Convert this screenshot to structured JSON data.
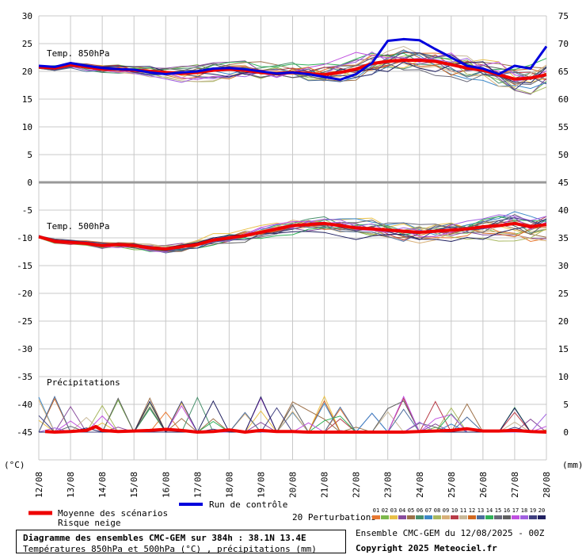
{
  "chart_data": {
    "type": "line",
    "title": "Diagramme des ensembles CMC-GEM sur 384h : 38.1N 13.4E",
    "subtitle": "Températures 850hPa et 500hPa (°C) , précipitations (mm)",
    "run_info": "Ensemble CMC-GEM du 12/08/2025 - 00Z",
    "copyright": "Copyright 2025 Meteociel.fr",
    "left_axis_unit": "(°C)",
    "right_axis_unit": "(mm)",
    "left_axis": {
      "range": [
        -50,
        30
      ],
      "ticks": [
        30,
        25,
        20,
        15,
        10,
        5,
        0,
        -5,
        -10,
        -15,
        -20,
        -25,
        -30,
        -35,
        -40,
        -45
      ]
    },
    "right_axis_ticks": [
      {
        "label": "75",
        "at": 30
      },
      {
        "label": "70",
        "at": 25
      },
      {
        "label": "65",
        "at": 20
      },
      {
        "label": "60",
        "at": 15
      },
      {
        "label": "55",
        "at": 10
      },
      {
        "label": "50",
        "at": 5
      },
      {
        "label": "45",
        "at": 0
      },
      {
        "label": "40",
        "at": -5
      },
      {
        "label": "35",
        "at": -10
      },
      {
        "label": "30",
        "at": -15
      },
      {
        "label": "25",
        "at": -20
      },
      {
        "label": "20",
        "at": -25
      },
      {
        "label": "15",
        "at": -30
      },
      {
        "label": "10",
        "at": -35
      },
      {
        "label": "5",
        "at": -40
      },
      {
        "label": "0",
        "at": -45
      }
    ],
    "x_axis": {
      "range": [
        0,
        16
      ],
      "ticks": [
        "12/08",
        "13/08",
        "14/08",
        "15/08",
        "16/08",
        "17/08",
        "18/08",
        "19/08",
        "20/08",
        "21/08",
        "22/08",
        "23/08",
        "24/08",
        "25/08",
        "26/08",
        "27/08",
        "28/08"
      ]
    },
    "grid": true,
    "panels": {
      "t850": "Temp. 850hPa",
      "t500": "Temp. 500hPa",
      "precip": "Précipitations"
    },
    "legend": {
      "mean": "Moyenne des scénarios",
      "snow": "Risque neige",
      "control": "Run de contrôle",
      "perturbations": "20 Perturbations"
    },
    "colors": {
      "mean": "#ee0000",
      "control": "#0000dd",
      "perturbations": [
        "#e87830",
        "#7cb84c",
        "#e8c048",
        "#884c9c",
        "#9c7048",
        "#48906c",
        "#3c88c8",
        "#a8b860",
        "#d8b078",
        "#b83c48",
        "#c8b898",
        "#d06820",
        "#4c6c9c",
        "#30b058",
        "#686878",
        "#606060",
        "#c050e0",
        "#a060e0",
        "#404080",
        "#202060"
      ]
    },
    "pert_labels": [
      "01",
      "02",
      "03",
      "04",
      "05",
      "06",
      "07",
      "08",
      "09",
      "10",
      "11",
      "12",
      "13",
      "14",
      "15",
      "16",
      "17",
      "18",
      "19",
      "20"
    ],
    "series": [
      {
        "name": "Moyenne des scénarios",
        "level": "850hPa",
        "x": [
          0,
          0.5,
          1,
          1.5,
          2,
          2.5,
          3,
          3.5,
          4,
          4.5,
          5,
          5.5,
          6,
          6.5,
          7,
          7.5,
          8,
          8.5,
          9,
          9.5,
          10,
          10.5,
          11,
          11.5,
          12,
          12.5,
          13,
          13.5,
          14,
          14.5,
          15,
          15.5,
          16
        ],
        "values": [
          20.8,
          20.6,
          21.2,
          20.8,
          20.4,
          20.4,
          20.2,
          20.0,
          19.8,
          19.6,
          19.8,
          20.2,
          20.4,
          20.2,
          19.8,
          19.6,
          19.8,
          19.6,
          19.4,
          19.8,
          20.4,
          21.4,
          21.8,
          22.0,
          22.0,
          21.8,
          21.2,
          20.6,
          20.2,
          19.4,
          18.6,
          18.8,
          19.4
        ]
      },
      {
        "name": "Run de contrôle",
        "level": "850hPa",
        "x": [
          0,
          0.5,
          1,
          1.5,
          2,
          2.5,
          3,
          3.5,
          4,
          4.5,
          5,
          5.5,
          6,
          6.5,
          7,
          7.5,
          8,
          8.5,
          9,
          9.5,
          10,
          10.5,
          11,
          11.5,
          12,
          12.5,
          13,
          13.5,
          14,
          14.5,
          15,
          15.5,
          16
        ],
        "values": [
          21.0,
          20.8,
          21.5,
          21.0,
          20.6,
          20.4,
          20.3,
          19.8,
          19.5,
          19.8,
          20.0,
          20.5,
          20.6,
          20.4,
          20.0,
          19.6,
          19.8,
          19.5,
          19.0,
          18.5,
          19.5,
          21.5,
          25.5,
          25.8,
          25.6,
          24.0,
          22.5,
          21.0,
          20.5,
          19.5,
          21.0,
          20.5,
          24.5
        ]
      },
      {
        "name": "Moyenne des scénarios",
        "level": "500hPa",
        "x": [
          0,
          0.5,
          1,
          1.5,
          2,
          2.5,
          3,
          3.5,
          4,
          4.5,
          5,
          5.5,
          6,
          6.5,
          7,
          7.5,
          8,
          8.5,
          9,
          9.5,
          10,
          10.5,
          11,
          11.5,
          12,
          12.5,
          13,
          13.5,
          14,
          14.5,
          15,
          15.5,
          16
        ],
        "values": [
          -9.8,
          -10.6,
          -10.8,
          -11.0,
          -11.4,
          -11.2,
          -11.4,
          -11.8,
          -12.0,
          -11.6,
          -11.2,
          -10.4,
          -10.0,
          -9.6,
          -9.0,
          -8.4,
          -7.8,
          -7.6,
          -7.4,
          -7.8,
          -8.2,
          -8.4,
          -8.6,
          -8.8,
          -9.0,
          -8.8,
          -8.6,
          -8.4,
          -8.0,
          -7.8,
          -7.4,
          -8.0,
          -7.6
        ]
      },
      {
        "name": "Moyenne des scénarios",
        "level": "precip_mm",
        "x": [
          0.2,
          0.5,
          1,
          1.5,
          1.8,
          2,
          2.5,
          3,
          3.5,
          4,
          4.5,
          5,
          5.5,
          6,
          6.5,
          7,
          7.5,
          8,
          8.5,
          9,
          9.5,
          10,
          10.5,
          11,
          11.5,
          12,
          12.5,
          13,
          13.5,
          14,
          14.5,
          15,
          15.5,
          16
        ],
        "values": [
          0.1,
          0.0,
          0.1,
          0.3,
          1.0,
          0.3,
          0.1,
          0.2,
          0.3,
          0.5,
          0.3,
          0.0,
          0.1,
          0.4,
          0.0,
          0.3,
          0.1,
          0.1,
          0.0,
          0.0,
          0.0,
          0.0,
          0.0,
          0.0,
          0.0,
          0.1,
          0.2,
          0.3,
          0.6,
          0.2,
          0.2,
          0.3,
          0.1,
          0.0
        ]
      }
    ]
  }
}
